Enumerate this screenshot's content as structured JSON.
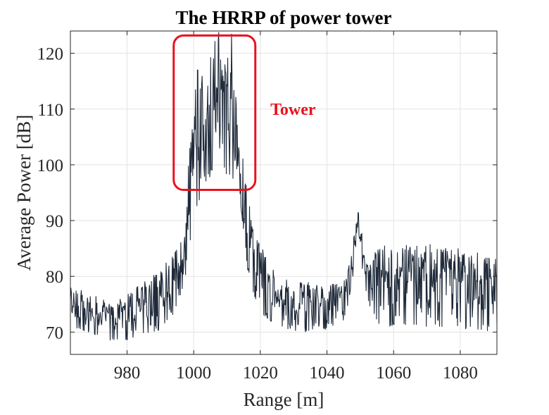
{
  "chart_data": {
    "type": "line",
    "title": "The HRRP of power tower",
    "xlabel": "Range [m]",
    "ylabel": "Average Power [dB]",
    "xlim": [
      963,
      1091
    ],
    "ylim": [
      66,
      124
    ],
    "xticks": [
      980,
      1000,
      1020,
      1040,
      1060,
      1080
    ],
    "yticks": [
      70,
      80,
      90,
      100,
      110,
      120
    ],
    "grid": true,
    "series": [
      {
        "color": "#1f2a3a",
        "envelope": {
          "x": [
            963,
            970,
            975,
            980,
            985,
            990,
            994,
            997,
            999,
            1001,
            1003,
            1005,
            1007,
            1009,
            1011,
            1013,
            1015,
            1017,
            1020,
            1025,
            1030,
            1035,
            1040,
            1045,
            1047,
            1048.5,
            1049.5,
            1051,
            1053,
            1056,
            1060,
            1070,
            1080,
            1091
          ],
          "low": [
            71,
            69.5,
            68.5,
            68.5,
            69,
            70.5,
            73,
            78,
            84,
            92,
            95,
            98,
            100,
            99,
            97,
            92,
            85,
            78,
            73,
            71,
            70,
            70,
            70.5,
            72,
            76,
            82,
            84,
            79,
            74,
            71,
            71,
            70.5,
            70.5,
            70
          ],
          "high": [
            78,
            77,
            75,
            77,
            79,
            82,
            84,
            88,
            105,
            117,
            117,
            120,
            124,
            118,
            123,
            112,
            100,
            92,
            86,
            80,
            79,
            79,
            78.5,
            79,
            83,
            89,
            91.5,
            86,
            83,
            86,
            86,
            86,
            85,
            84
          ]
        },
        "peaks": [
          {
            "x": 1001.2,
            "y": 117
          },
          {
            "x": 1007.5,
            "y": 124
          },
          {
            "x": 1011.3,
            "y": 123.5
          },
          {
            "x": 1049.3,
            "y": 91.5
          }
        ]
      }
    ],
    "annotations": [
      {
        "type": "rounded-rect",
        "color": "#e8121e",
        "x0": 994,
        "x1": 1018.5,
        "y0": 95.5,
        "y1": 123.2
      },
      {
        "type": "text",
        "text": "Tower",
        "color": "#e8121e",
        "x": 1023,
        "y": 110
      }
    ]
  }
}
